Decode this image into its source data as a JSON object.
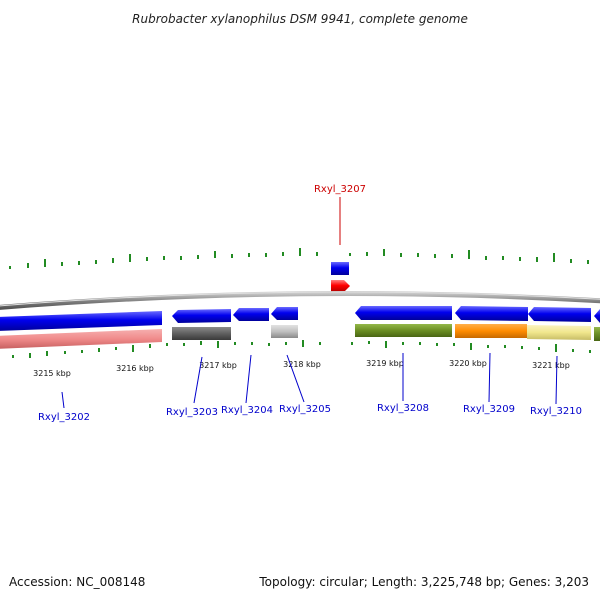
{
  "title": "Rubrobacter xylanophilus DSM 9941, complete genome",
  "footer": {
    "accession": "Accession: NC_008148",
    "summary": "Topology: circular; Length: 3,225,748 bp; Genes: 3,203"
  },
  "colors": {
    "backbone": "#808080",
    "cds": "#0000ee",
    "highlight": "#ff0000",
    "label_blue": "#0000cc",
    "label_red": "#cc0000",
    "gc_ticks": "#228b22"
  },
  "scale_labels": [
    "3215 kbp",
    "3216 kbp",
    "3217 kbp",
    "3218 kbp",
    "3219 kbp",
    "3220 kbp",
    "3221 kbp"
  ],
  "genes": [
    {
      "id": "Rxyl_3202",
      "label": "Rxyl_3202",
      "strand": "reverse",
      "highlighted": false,
      "annotation_color": "#f08a8a"
    },
    {
      "id": "Rxyl_3203",
      "label": "Rxyl_3203",
      "strand": "reverse",
      "highlighted": false,
      "annotation_color": "#606060"
    },
    {
      "id": "Rxyl_3204",
      "label": "Rxyl_3204",
      "strand": "reverse",
      "highlighted": false,
      "annotation_color": ""
    },
    {
      "id": "Rxyl_3205",
      "label": "Rxyl_3205",
      "strand": "reverse",
      "highlighted": false,
      "annotation_color": "#c0c0c0"
    },
    {
      "id": "Rxyl_3207",
      "label": "Rxyl_3207",
      "strand": "forward",
      "highlighted": true,
      "annotation_color": ""
    },
    {
      "id": "Rxyl_3208",
      "label": "Rxyl_3208",
      "strand": "reverse",
      "highlighted": false,
      "annotation_color": "#6b8e23"
    },
    {
      "id": "Rxyl_3209",
      "label": "Rxyl_3209",
      "strand": "reverse",
      "highlighted": false,
      "annotation_color": "#ff8c00"
    },
    {
      "id": "Rxyl_3210",
      "label": "Rxyl_3210",
      "strand": "reverse",
      "highlighted": false,
      "annotation_color": "#f0e68c"
    }
  ]
}
